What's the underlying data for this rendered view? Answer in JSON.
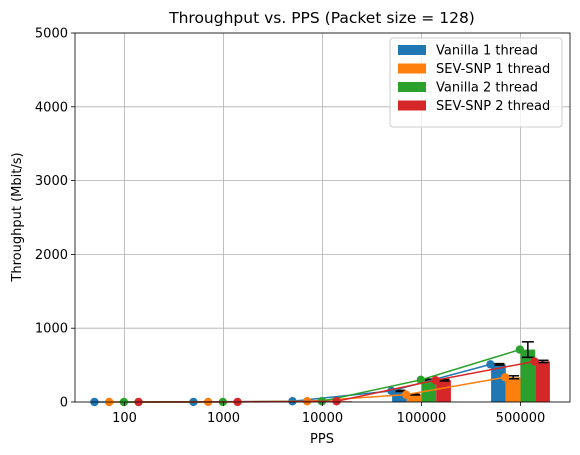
{
  "chart_data": {
    "type": "bar",
    "title": "Throughput vs. PPS (Packet size = 128)",
    "xlabel": "PPS",
    "ylabel": "Throughput (Mbit/s)",
    "categories": [
      "100",
      "1000",
      "10000",
      "100000",
      "500000"
    ],
    "ylim": [
      0,
      5000
    ],
    "yticks": [
      "0",
      "1000",
      "2000",
      "3000",
      "4000",
      "5000"
    ],
    "grid": true,
    "legend_position": "top-right",
    "series": [
      {
        "name": "Vanilla 1 thread",
        "color": "#1f77b4",
        "values": [
          0.1,
          1,
          10,
          150,
          510
        ],
        "errors": [
          0,
          0,
          0,
          8,
          10
        ]
      },
      {
        "name": "SEV-SNP 1 thread",
        "color": "#ff7f0e",
        "values": [
          0.1,
          1,
          10,
          100,
          335
        ],
        "errors": [
          0,
          0,
          0,
          5,
          20
        ]
      },
      {
        "name": "Vanilla 2 thread",
        "color": "#2ca02c",
        "values": [
          0.1,
          1,
          10,
          300,
          710
        ],
        "errors": [
          0,
          0,
          0,
          10,
          105
        ]
      },
      {
        "name": "SEV-SNP 2 thread",
        "color": "#d62728",
        "values": [
          0.1,
          1,
          10,
          295,
          550
        ],
        "errors": [
          0,
          0,
          0,
          10,
          15
        ]
      }
    ]
  }
}
